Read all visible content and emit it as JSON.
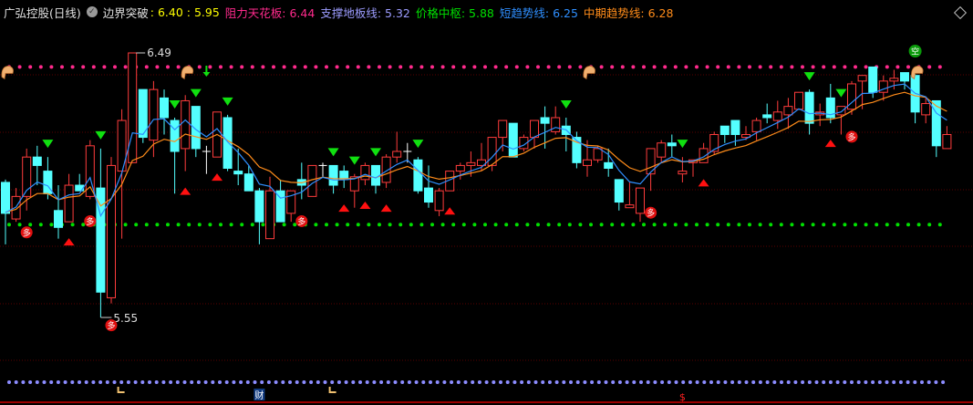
{
  "header": {
    "stock": "广弘控股(日线)",
    "indicator_icon": "circle-chevron-icon",
    "indicator": "边界突破",
    "breakout_values": ": 6.40 : 5.95",
    "resistance_label": "阻力天花板: ",
    "resistance_value": "6.44",
    "support_label": "支撑地板线: ",
    "support_value": "5.32",
    "center_label": "价格中枢: ",
    "center_value": "5.88",
    "short_label": "短趋势线: ",
    "short_value": "6.25",
    "mid_label": "中期趋势线: ",
    "mid_value": "6.28"
  },
  "colors": {
    "background": "#000000",
    "up": "#ff3c3c",
    "down": "#54ffff",
    "doji": "#ffffff",
    "resistance": "#ff2a8c",
    "support": "#8c8cff",
    "center": "#00e000",
    "short_trend": "#2f8fff",
    "mid_trend": "#ff8c1a",
    "breakout": "#ffff00",
    "grid": "#5a0000"
  },
  "chart_data": {
    "type": "candlestick",
    "ylim": [
      5.239,
      6.678
    ],
    "levels": {
      "resistance": 6.44,
      "center": 5.88,
      "support": 5.32
    },
    "annotations": {
      "high": "6.49",
      "high_index": 12,
      "low": "5.55",
      "low_index": 9
    },
    "ohlc": [
      [
        6.03,
        6.04,
        5.81,
        5.92
      ],
      [
        5.9,
        6.01,
        5.89,
        5.98
      ],
      [
        5.98,
        6.15,
        5.93,
        6.12
      ],
      [
        6.12,
        6.16,
        6.02,
        6.09
      ],
      [
        6.07,
        6.12,
        5.97,
        5.99
      ],
      [
        5.93,
        6.02,
        5.83,
        5.87
      ],
      [
        5.89,
        6.06,
        5.89,
        6.02
      ],
      [
        6.02,
        6.06,
        6.0,
        6.0
      ],
      [
        5.98,
        6.18,
        5.97,
        6.16
      ],
      [
        6.01,
        6.15,
        5.55,
        5.64
      ],
      [
        5.62,
        6.12,
        5.6,
        6.09
      ],
      [
        6.07,
        6.29,
        5.83,
        6.25
      ],
      [
        6.1,
        6.49,
        6.1,
        6.49
      ],
      [
        6.36,
        6.36,
        6.17,
        6.19
      ],
      [
        6.18,
        6.39,
        6.12,
        6.36
      ],
      [
        6.33,
        6.36,
        6.2,
        6.26
      ],
      [
        6.25,
        6.26,
        5.99,
        6.14
      ],
      [
        6.15,
        6.34,
        6.07,
        6.32
      ],
      [
        6.3,
        6.3,
        6.12,
        6.15
      ],
      [
        6.14,
        6.16,
        6.06,
        6.14
      ],
      [
        6.12,
        6.28,
        6.12,
        6.28
      ],
      [
        6.26,
        6.27,
        6.07,
        6.08
      ],
      [
        6.07,
        6.15,
        6.02,
        6.06
      ],
      [
        6.06,
        6.09,
        6.0,
        6.0
      ],
      [
        6.0,
        6.01,
        5.81,
        5.89
      ],
      [
        5.83,
        6.05,
        5.83,
        6.0
      ],
      [
        6.0,
        6.04,
        5.89,
        5.89
      ],
      [
        5.92,
        6.0,
        5.89,
        6.0
      ],
      [
        6.04,
        6.1,
        5.97,
        6.02
      ],
      [
        5.98,
        6.09,
        5.98,
        6.09
      ],
      [
        6.09,
        6.1,
        6.05,
        6.09
      ],
      [
        6.09,
        6.09,
        5.99,
        6.02
      ],
      [
        6.07,
        6.09,
        6.01,
        6.04
      ],
      [
        6.0,
        6.06,
        5.94,
        6.05
      ],
      [
        6.04,
        6.1,
        6.02,
        6.09
      ],
      [
        6.09,
        6.09,
        5.99,
        6.02
      ],
      [
        6.03,
        6.13,
        6.01,
        6.12
      ],
      [
        6.12,
        6.21,
        6.1,
        6.14
      ],
      [
        6.14,
        6.17,
        6.1,
        6.14
      ],
      [
        6.11,
        6.12,
        5.99,
        6.0
      ],
      [
        6.01,
        6.09,
        5.94,
        5.96
      ],
      [
        5.93,
        6.01,
        5.91,
        6.0
      ],
      [
        6.0,
        6.07,
        6.0,
        6.07
      ],
      [
        6.07,
        6.1,
        6.04,
        6.09
      ],
      [
        6.09,
        6.14,
        6.05,
        6.1
      ],
      [
        6.09,
        6.17,
        6.07,
        6.11
      ],
      [
        6.09,
        6.19,
        6.07,
        6.19
      ],
      [
        6.19,
        6.25,
        6.14,
        6.25
      ],
      [
        6.24,
        6.24,
        6.12,
        6.12
      ],
      [
        6.15,
        6.2,
        6.14,
        6.19
      ],
      [
        6.19,
        6.25,
        6.15,
        6.25
      ],
      [
        6.26,
        6.3,
        6.15,
        6.24
      ],
      [
        6.21,
        6.3,
        6.2,
        6.26
      ],
      [
        6.23,
        6.26,
        6.14,
        6.2
      ],
      [
        6.19,
        6.21,
        6.08,
        6.1
      ],
      [
        6.09,
        6.18,
        6.05,
        6.11
      ],
      [
        6.11,
        6.16,
        6.1,
        6.15
      ],
      [
        6.1,
        6.15,
        6.05,
        6.08
      ],
      [
        6.04,
        6.04,
        5.93,
        5.96
      ],
      [
        5.94,
        6.03,
        5.94,
        5.95
      ],
      [
        5.92,
        6.01,
        5.89,
        6.01
      ],
      [
        6.06,
        6.15,
        6.0,
        6.15
      ],
      [
        6.12,
        6.18,
        6.1,
        6.17
      ],
      [
        6.17,
        6.2,
        6.12,
        6.16
      ],
      [
        6.06,
        6.12,
        6.03,
        6.07
      ],
      [
        6.1,
        6.11,
        6.05,
        6.11
      ],
      [
        6.1,
        6.17,
        6.1,
        6.15
      ],
      [
        6.14,
        6.21,
        6.13,
        6.2
      ],
      [
        6.23,
        6.23,
        6.17,
        6.2
      ],
      [
        6.25,
        6.25,
        6.16,
        6.2
      ],
      [
        6.19,
        6.23,
        6.18,
        6.2
      ],
      [
        6.21,
        6.26,
        6.18,
        6.25
      ],
      [
        6.27,
        6.31,
        6.24,
        6.26
      ],
      [
        6.25,
        6.32,
        6.22,
        6.28
      ],
      [
        6.27,
        6.33,
        6.22,
        6.3
      ],
      [
        6.29,
        6.35,
        6.29,
        6.35
      ],
      [
        6.35,
        6.36,
        6.2,
        6.24
      ],
      [
        6.27,
        6.31,
        6.23,
        6.28
      ],
      [
        6.33,
        6.38,
        6.24,
        6.26
      ],
      [
        6.27,
        6.3,
        6.2,
        6.3
      ],
      [
        6.29,
        6.39,
        6.27,
        6.38
      ],
      [
        6.39,
        6.41,
        6.29,
        6.41
      ],
      [
        6.44,
        6.44,
        6.33,
        6.35
      ],
      [
        6.35,
        6.41,
        6.32,
        6.39
      ],
      [
        6.39,
        6.43,
        6.36,
        6.4
      ],
      [
        6.42,
        6.42,
        6.36,
        6.39
      ],
      [
        6.41,
        6.44,
        6.24,
        6.28
      ],
      [
        6.27,
        6.33,
        6.24,
        6.31
      ],
      [
        6.32,
        6.32,
        6.12,
        6.16
      ],
      [
        6.15,
        6.23,
        6.15,
        6.2
      ]
    ],
    "doji_indices": [
      19,
      30,
      38
    ],
    "signals": {
      "sell_triangles": [
        4,
        9,
        16,
        18,
        21,
        31,
        33,
        35,
        39,
        53,
        64,
        76,
        79
      ],
      "sell_arrow": [
        19
      ],
      "buy_triangles": [
        6,
        17,
        20,
        32,
        34,
        36,
        42,
        66,
        78
      ],
      "duo_badges": [
        2,
        8,
        10,
        28,
        61,
        80
      ],
      "kong_badges": [
        86
      ],
      "hand_icons": [
        0,
        17,
        55,
        86
      ],
      "corner_marks": [
        11,
        31
      ],
      "cai_marks": [
        24
      ],
      "dollar_marks": [
        64
      ]
    },
    "badge_text": {
      "duo": "多",
      "kong": "空",
      "cai": "财",
      "dollar": "$"
    }
  }
}
